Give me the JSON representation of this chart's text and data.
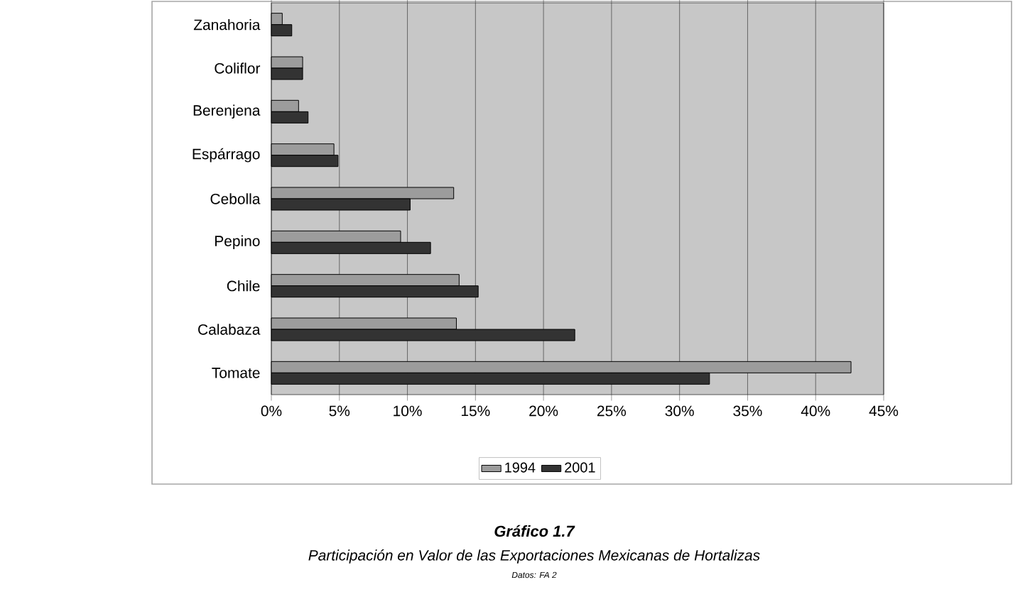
{
  "chart_data": {
    "type": "bar",
    "orientation": "horizontal",
    "title": "Gráfico 1.7",
    "subtitle": "Participación en Valor de las Exportaciones Mexicanas de Hortalizas",
    "annotations": [
      "Datos: FA 2"
    ],
    "categories": [
      "Zanahoria",
      "Coliflor",
      "Berenjena",
      "Espárrago",
      "Cebolla",
      "Pepino",
      "Chile",
      "Calabaza",
      "Tomate"
    ],
    "series": [
      {
        "name": "1994",
        "color": "#9c9c9c",
        "values": [
          0.8,
          2.3,
          2.0,
          4.6,
          13.4,
          9.5,
          13.8,
          13.6,
          42.6
        ]
      },
      {
        "name": "2001",
        "color": "#333333",
        "values": [
          1.5,
          2.3,
          2.7,
          4.9,
          10.2,
          11.7,
          15.2,
          22.3,
          32.2
        ]
      }
    ],
    "xlim": [
      0,
      45
    ],
    "xticks": [
      {
        "value": 0,
        "label": "0%"
      },
      {
        "value": 5,
        "label": "5%"
      },
      {
        "value": 10,
        "label": "10%"
      },
      {
        "value": 15,
        "label": "15%"
      },
      {
        "value": 20,
        "label": "20%"
      },
      {
        "value": 25,
        "label": "25%"
      },
      {
        "value": 30,
        "label": "30%"
      },
      {
        "value": 35,
        "label": "35%"
      },
      {
        "value": 40,
        "label": "40%"
      },
      {
        "value": 45,
        "label": "45%"
      }
    ],
    "grid": "x",
    "legend": "bottom"
  }
}
